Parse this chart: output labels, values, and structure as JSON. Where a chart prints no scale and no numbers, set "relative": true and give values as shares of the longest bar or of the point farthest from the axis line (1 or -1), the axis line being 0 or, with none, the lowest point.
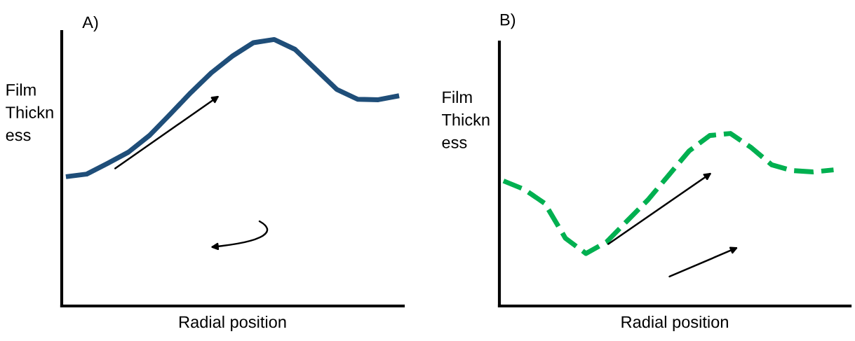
{
  "chart_data": [
    {
      "type": "line",
      "relative": true,
      "title": "A)",
      "xlabel": "Radial position",
      "ylabel": "Film\nThickn\ness",
      "line_style": "solid",
      "categories": [
        null,
        null,
        null,
        null,
        null,
        null,
        null,
        null,
        null,
        null,
        null,
        null,
        null,
        null,
        null,
        null,
        null
      ],
      "series": [
        {
          "color": "#1f4e79",
          "values": [
            0.485,
            0.495,
            0.535,
            0.577,
            0.639,
            0.719,
            0.801,
            0.876,
            0.938,
            0.988,
            1.0,
            0.963,
            0.888,
            0.813,
            0.776,
            0.774,
            0.789
          ]
        }
      ]
    },
    {
      "type": "line",
      "relative": true,
      "title": "B)",
      "xlabel": "Radial position",
      "ylabel": "Film\nThickn\ness",
      "line_style": "dashed",
      "categories": [
        null,
        null,
        null,
        null,
        null,
        null,
        null,
        null,
        null,
        null,
        null,
        null,
        null,
        null,
        null,
        null,
        null
      ],
      "series": [
        {
          "color": "#00b050",
          "values": [
            0.725,
            0.676,
            0.595,
            0.393,
            0.304,
            0.372,
            0.494,
            0.615,
            0.757,
            0.899,
            0.988,
            1.0,
            0.919,
            0.818,
            0.785,
            0.777,
            0.789
          ]
        }
      ]
    }
  ]
}
